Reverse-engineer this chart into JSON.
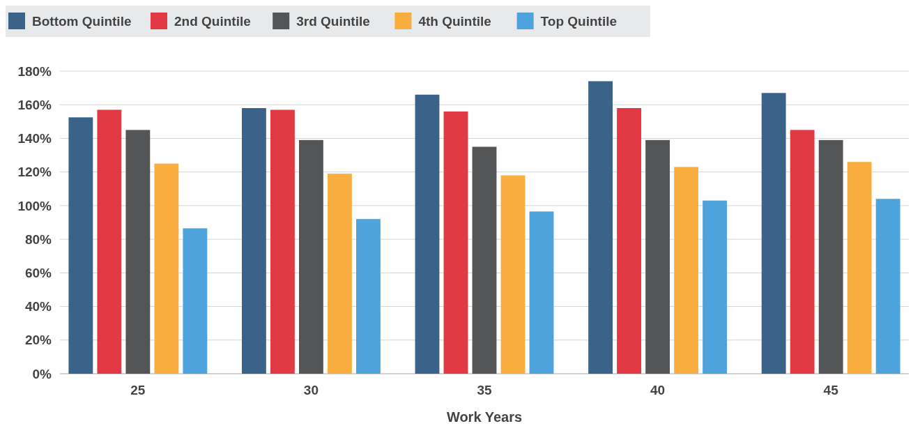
{
  "chart_data": {
    "type": "bar",
    "xlabel": "Work Years",
    "categories": [
      "25",
      "30",
      "35",
      "40",
      "45"
    ],
    "series": [
      {
        "name": "Bottom Quintile",
        "color": "#3b6289",
        "values": [
          152.5,
          158,
          166,
          174,
          167
        ]
      },
      {
        "name": "2nd Quintile",
        "color": "#e23a45",
        "values": [
          157,
          157,
          156,
          158,
          145
        ]
      },
      {
        "name": "3rd Quintile",
        "color": "#545557",
        "values": [
          145,
          139,
          135,
          139,
          139
        ]
      },
      {
        "name": "4th Quintile",
        "color": "#fbae40",
        "values": [
          125,
          119,
          118,
          123,
          126
        ]
      },
      {
        "name": "Top Quintile",
        "color": "#4fa3dc",
        "values": [
          86.5,
          92,
          96.5,
          103,
          104
        ]
      }
    ],
    "ylim": [
      0,
      180
    ],
    "yticks": [
      {
        "value": 0,
        "label": "0%"
      },
      {
        "value": 20,
        "label": "20%"
      },
      {
        "value": 40,
        "label": "40%"
      },
      {
        "value": 60,
        "label": "60%"
      },
      {
        "value": 80,
        "label": "80%"
      },
      {
        "value": 100,
        "label": "100%"
      },
      {
        "value": 120,
        "label": "120%"
      },
      {
        "value": 140,
        "label": "140%"
      },
      {
        "value": 160,
        "label": "160%"
      },
      {
        "value": 180,
        "label": "180%"
      }
    ],
    "grid": "y",
    "legend": "top left"
  }
}
